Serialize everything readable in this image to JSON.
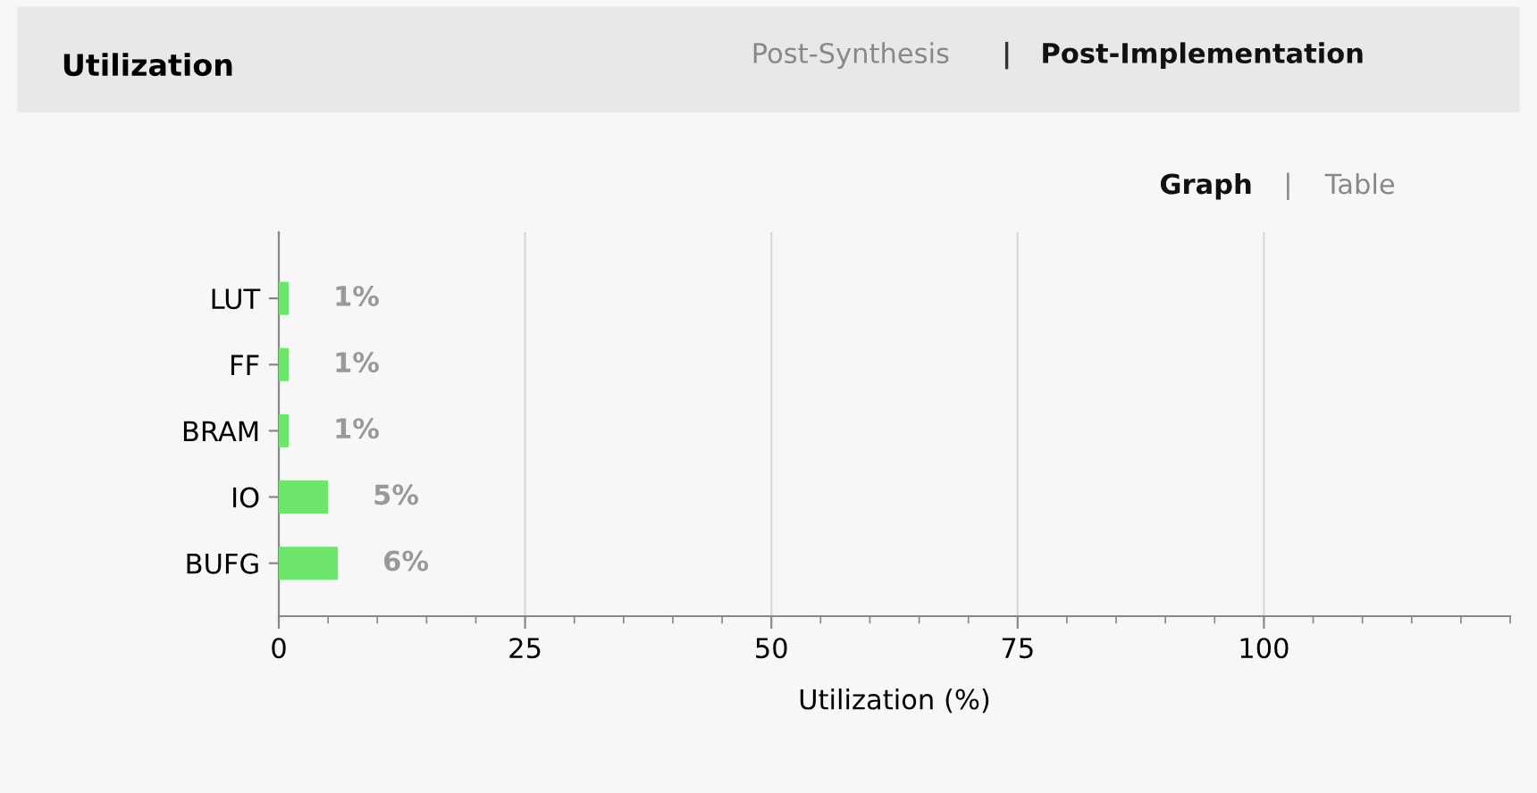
{
  "chart_data": {
    "type": "bar",
    "orientation": "horizontal",
    "title": "Utilization",
    "xlabel": "Utilization (%)",
    "categories": [
      "LUT",
      "FF",
      "BRAM",
      "IO",
      "BUFG"
    ],
    "values": [
      1,
      1,
      1,
      5,
      6
    ],
    "color": "#6ee66e",
    "value_labels": [
      "1%",
      "1%",
      "1%",
      "5%",
      "6%"
    ],
    "xlim": [
      0,
      125
    ],
    "xticks": [
      0,
      25,
      50,
      75,
      100
    ],
    "grid": "x",
    "annotations": [
      "Post-Synthesis",
      "|",
      "Post-Implementation",
      "Graph",
      "|",
      "Table"
    ]
  }
}
